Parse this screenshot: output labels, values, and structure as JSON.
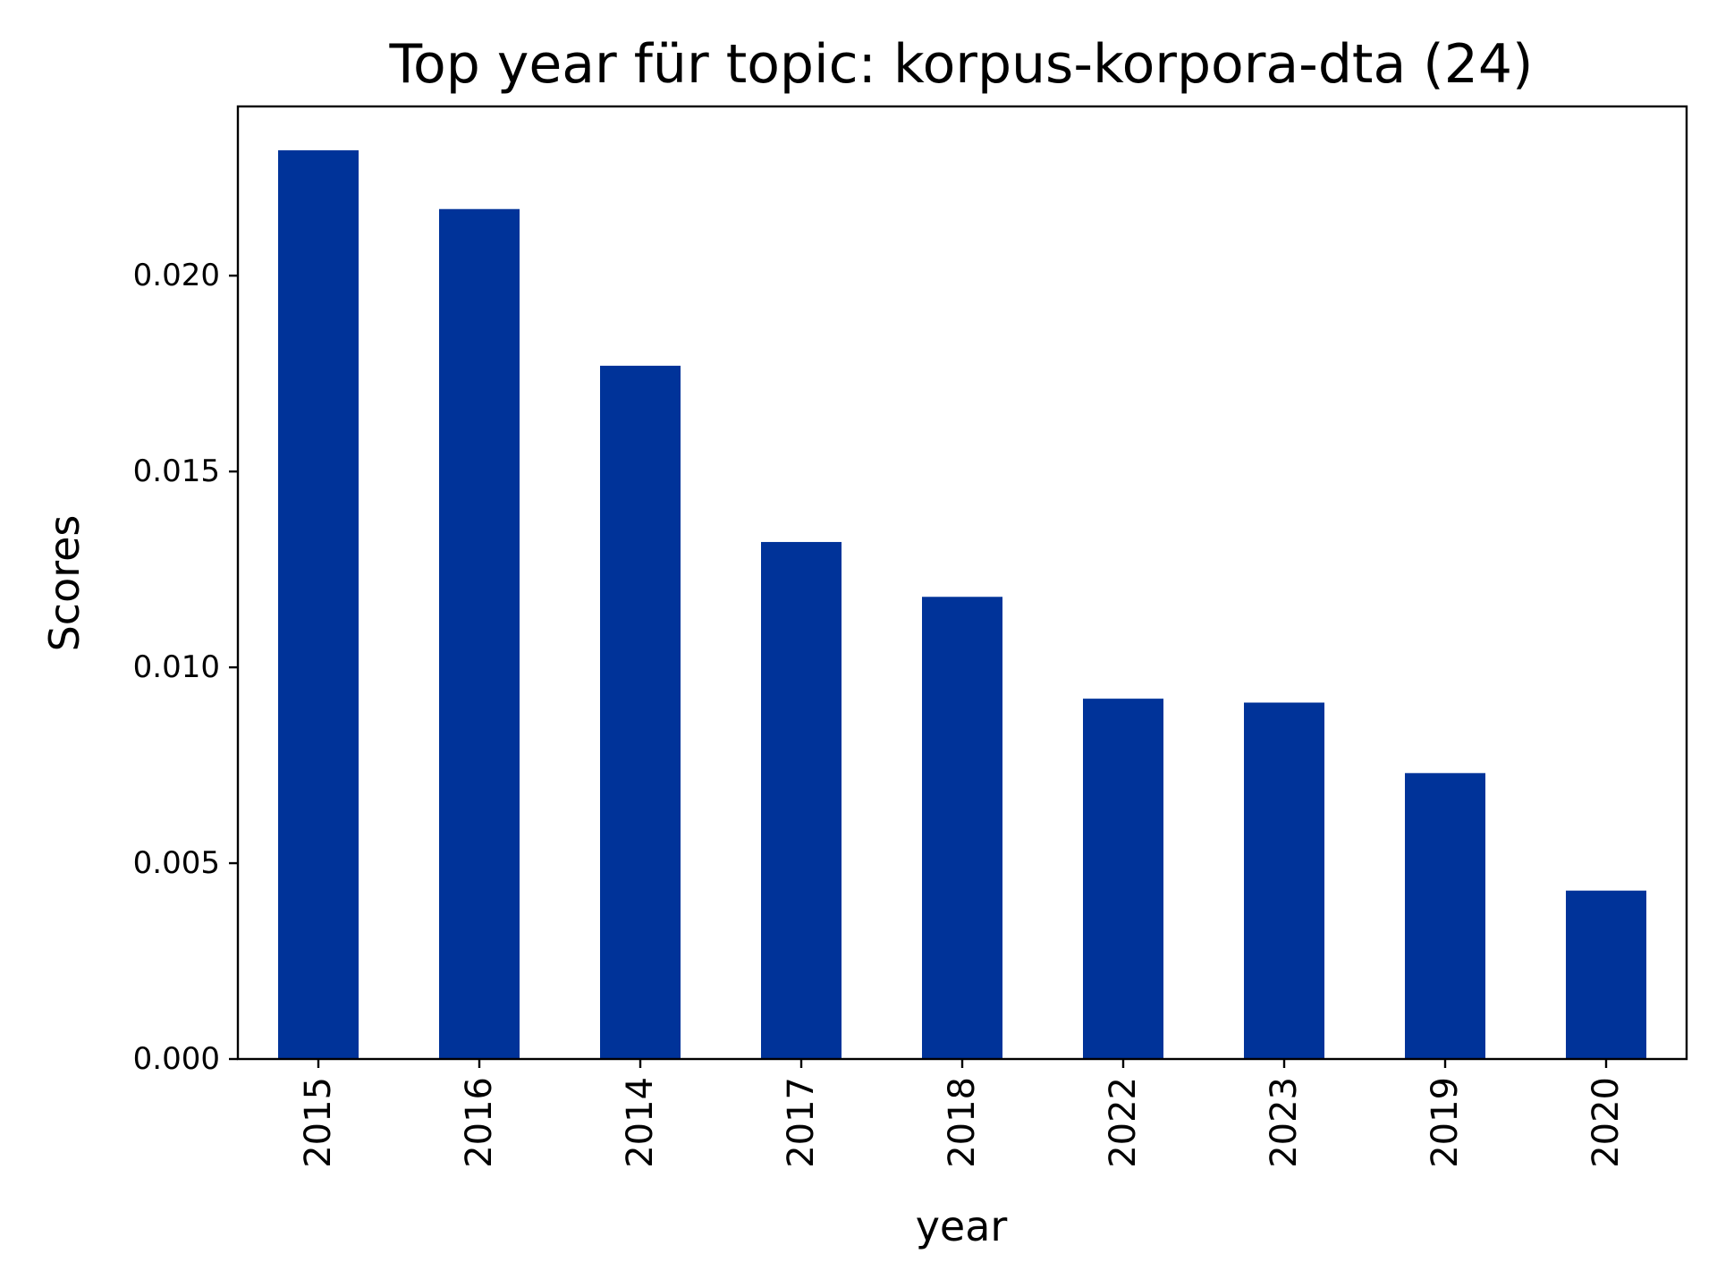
{
  "chart_data": {
    "type": "bar",
    "title": "Top year für topic: korpus-korpora-dta (24)",
    "xlabel": "year",
    "ylabel": "Scores",
    "categories": [
      "2015",
      "2016",
      "2014",
      "2017",
      "2018",
      "2022",
      "2023",
      "2019",
      "2020"
    ],
    "values": [
      0.0232,
      0.0217,
      0.0177,
      0.0132,
      0.0118,
      0.0092,
      0.0091,
      0.0073,
      0.0043
    ],
    "ylim": [
      0,
      0.02432
    ],
    "yticks": [
      0.0,
      0.005,
      0.01,
      0.015,
      0.02
    ],
    "ytick_labels": [
      "0.000",
      "0.005",
      "0.010",
      "0.015",
      "0.020"
    ],
    "grid": false,
    "legend": "none",
    "bar_color": "#003399"
  }
}
